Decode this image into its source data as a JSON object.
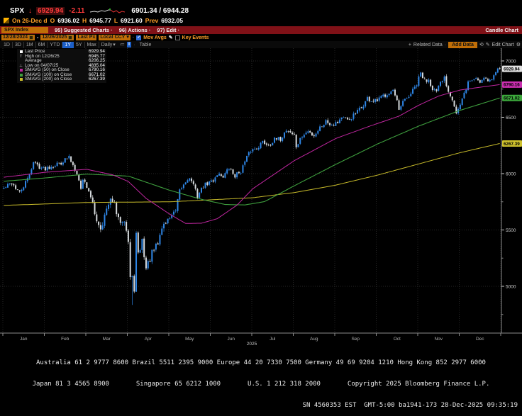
{
  "header": {
    "ticker": "SPX",
    "direction_arrow": "↓",
    "last_price": "6929.94",
    "change": "-2.11",
    "bid_ask": "6901.34 / 6944.28",
    "session": {
      "on_text": "On 26-Dec d",
      "o_label": "O",
      "open": "6936.02",
      "h_label": "H",
      "high": "6945.77",
      "l_label": "L",
      "low": "6921.60",
      "prev_label": "Prev",
      "prev": "6932.05"
    }
  },
  "red_bar": {
    "security": "SPX Index",
    "menu": [
      "95) Suggested Charts ·",
      "96) Actions ·",
      "97) Edit ·"
    ],
    "chart_type": "Candle Chart"
  },
  "toolbar": {
    "date_from": "12/28/2024",
    "date_range_sep": "-",
    "date_to": "12/26/2025",
    "price_field": "Last Px",
    "currency": "Local CCY",
    "mov_avgs_label": "Mov Avgs",
    "key_events_label": "Key Events"
  },
  "tab_row": {
    "periods": [
      "1D",
      "3D",
      "1M",
      "6M",
      "YTD",
      "1Y",
      "5Y",
      "Max"
    ],
    "active_period": "1Y",
    "frequency": "Daily",
    "table_label": "Table",
    "related_label": "Related Data",
    "add_data_label": "Add Data",
    "edit_chart_label": "Edit Chart"
  },
  "icons": {
    "dropdown": "▾",
    "refresh": "⟲",
    "edit_pencil": "✎",
    "gear": "⚙",
    "check": "✓",
    "plus": "+",
    "dot": "·",
    "list": "≔",
    "candle": "‖"
  },
  "legend": {
    "rows": [
      {
        "marker": "sq",
        "color": "#ffffff",
        "label": "Last Price",
        "value": "6929.94"
      },
      {
        "marker": "T",
        "color": "#c8c8c8",
        "label": "High on 12/26/25",
        "value": "6945.77"
      },
      {
        "marker": "",
        "color": "#c8c8c8",
        "label": "Average",
        "value": "6206.25"
      },
      {
        "marker": "⊥",
        "color": "#c8c8c8",
        "label": "Low on 04/07/25",
        "value": "4835.04"
      },
      {
        "marker": "sq",
        "color": "#c026a0",
        "label": "SMAVG (50)  on Close",
        "value": "6790.16"
      },
      {
        "marker": "sq",
        "color": "#3e9e3e",
        "label": "SMAVG (100) on Close",
        "value": "6671.02"
      },
      {
        "marker": "sq",
        "color": "#c8bb2a",
        "label": "SMAVG (200) on Close",
        "value": "6267.39"
      }
    ]
  },
  "axis": {
    "price_boxes": [
      {
        "label": "6929.94",
        "value": 6929.94,
        "color": "#e2e2e2"
      },
      {
        "label": "6790.16",
        "value": 6790.16,
        "color": "#cb2fb0"
      },
      {
        "label": "6671.02",
        "value": 6671.02,
        "color": "#3ca83c"
      },
      {
        "label": "6267.39",
        "value": 6267.39,
        "color": "#cfc22e"
      }
    ]
  },
  "x_axis": {
    "months": [
      "Jan",
      "Feb",
      "Mar",
      "Apr",
      "May",
      "Jun",
      "Jul",
      "Aug",
      "Sep",
      "Oct",
      "Nov",
      "Dec"
    ],
    "year": "2025"
  },
  "footer": {
    "line1": "Australia 61 2 9777 8600 Brazil 5511 2395 9000 Europe 44 20 7330 7500 Germany 49 69 9204 1210 Hong Kong 852 2977 6000",
    "line2": "Japan 81 3 4565 8900       Singapore 65 6212 1000       U.S. 1 212 318 2000       Copyright 2025 Bloomberg Finance L.P.",
    "line3": "SN 4560353 EST  GMT-5:00 ba1941-173 28-Dec-2025 09:35:19"
  },
  "chart_data": {
    "type": "candlestick",
    "symbol": "SPX Index",
    "title": "SPX Index - Candle Chart, Daily, 12/28/2024 - 12/26/2025",
    "last": 6929.94,
    "change": -2.11,
    "day_range": {
      "open": 6936.02,
      "high": 6945.77,
      "low": 6921.6,
      "prev_close": 6932.05
    },
    "high": {
      "date": "12/26/25",
      "value": 6945.77
    },
    "low": {
      "date": "04/07/25",
      "value": 4835.04
    },
    "average": 6206.25,
    "smavg": {
      "sma50": 6790.16,
      "sma100": 6671.02,
      "sma200": 6267.39
    },
    "ylim": [
      4585,
      7113
    ],
    "y_ticks": [
      5000,
      5500,
      6000,
      6500,
      7000
    ],
    "y_minor_step": 250,
    "days": 252,
    "month_boundaries": [
      0,
      21,
      42,
      63,
      84,
      105,
      126,
      147,
      168,
      189,
      210,
      231,
      252
    ],
    "close_anchors": [
      [
        0,
        5869
      ],
      [
        4,
        5918
      ],
      [
        8,
        5827
      ],
      [
        12,
        5950
      ],
      [
        15,
        6101
      ],
      [
        20,
        6041
      ],
      [
        24,
        6068
      ],
      [
        28,
        6090
      ],
      [
        33,
        6144
      ],
      [
        37,
        6013
      ],
      [
        39,
        5861
      ],
      [
        40,
        5955
      ],
      [
        43,
        5850
      ],
      [
        46,
        5640
      ],
      [
        49,
        5521
      ],
      [
        52,
        5675
      ],
      [
        55,
        5777
      ],
      [
        58,
        5581
      ],
      [
        61,
        5612
      ],
      [
        63,
        5396
      ],
      [
        64,
        5074
      ],
      [
        65,
        5062
      ],
      [
        66,
        4983
      ],
      [
        67,
        5457
      ],
      [
        68,
        5268
      ],
      [
        70,
        5406
      ],
      [
        72,
        5158
      ],
      [
        75,
        5288
      ],
      [
        78,
        5376
      ],
      [
        80,
        5525
      ],
      [
        82,
        5569
      ],
      [
        85,
        5635
      ],
      [
        87,
        5663
      ],
      [
        89,
        5844
      ],
      [
        93,
        5958
      ],
      [
        95,
        5941
      ],
      [
        98,
        5803
      ],
      [
        101,
        5889
      ],
      [
        103,
        5912
      ],
      [
        106,
        5940
      ],
      [
        108,
        6000
      ],
      [
        111,
        5977
      ],
      [
        114,
        6045
      ],
      [
        117,
        5981
      ],
      [
        120,
        6025
      ],
      [
        123,
        6141
      ],
      [
        125,
        6205
      ],
      [
        128,
        6230
      ],
      [
        131,
        6280
      ],
      [
        134,
        6259
      ],
      [
        137,
        6297
      ],
      [
        140,
        6306
      ],
      [
        143,
        6389
      ],
      [
        145,
        6370
      ],
      [
        147,
        6339
      ],
      [
        148,
        6238
      ],
      [
        151,
        6330
      ],
      [
        154,
        6373
      ],
      [
        157,
        6340
      ],
      [
        160,
        6411
      ],
      [
        163,
        6466
      ],
      [
        166,
        6440
      ],
      [
        169,
        6460
      ],
      [
        171,
        6502
      ],
      [
        174,
        6466
      ],
      [
        178,
        6532
      ],
      [
        181,
        6584
      ],
      [
        184,
        6664
      ],
      [
        187,
        6637
      ],
      [
        189,
        6644
      ],
      [
        192,
        6689
      ],
      [
        194,
        6716
      ],
      [
        197,
        6735
      ],
      [
        199,
        6629
      ],
      [
        200,
        6552
      ],
      [
        202,
        6630
      ],
      [
        204,
        6664
      ],
      [
        207,
        6735
      ],
      [
        209,
        6791
      ],
      [
        211,
        6891
      ],
      [
        213,
        6822
      ],
      [
        215,
        6840
      ],
      [
        217,
        6762
      ],
      [
        219,
        6720
      ],
      [
        221,
        6796
      ],
      [
        223,
        6851
      ],
      [
        225,
        6737
      ],
      [
        227,
        6672
      ],
      [
        229,
        6538
      ],
      [
        231,
        6602
      ],
      [
        233,
        6705
      ],
      [
        235,
        6813
      ],
      [
        237,
        6829
      ],
      [
        239,
        6850
      ],
      [
        241,
        6812
      ],
      [
        243,
        6861
      ],
      [
        245,
        6827
      ],
      [
        247,
        6835
      ],
      [
        249,
        6902
      ],
      [
        250,
        6932.05
      ],
      [
        251,
        6929.94
      ]
    ],
    "sma50_anchors": [
      [
        0,
        5968
      ],
      [
        21,
        6012
      ],
      [
        42,
        6038
      ],
      [
        55,
        5990
      ],
      [
        63,
        5930
      ],
      [
        72,
        5780
      ],
      [
        84,
        5640
      ],
      [
        92,
        5558
      ],
      [
        100,
        5560
      ],
      [
        108,
        5600
      ],
      [
        118,
        5720
      ],
      [
        126,
        5866
      ],
      [
        147,
        6115
      ],
      [
        168,
        6312
      ],
      [
        185,
        6420
      ],
      [
        200,
        6510
      ],
      [
        210,
        6607
      ],
      [
        220,
        6688
      ],
      [
        231,
        6742
      ],
      [
        240,
        6764
      ],
      [
        251,
        6790.16
      ]
    ],
    "sma100_anchors": [
      [
        0,
        5932
      ],
      [
        21,
        5962
      ],
      [
        42,
        5996
      ],
      [
        63,
        5978
      ],
      [
        84,
        5852
      ],
      [
        100,
        5772
      ],
      [
        112,
        5726
      ],
      [
        122,
        5722
      ],
      [
        132,
        5752
      ],
      [
        147,
        5892
      ],
      [
        168,
        6082
      ],
      [
        189,
        6262
      ],
      [
        210,
        6422
      ],
      [
        231,
        6562
      ],
      [
        251,
        6671.02
      ]
    ],
    "sma200_anchors": [
      [
        0,
        5718
      ],
      [
        42,
        5744
      ],
      [
        84,
        5750
      ],
      [
        126,
        5786
      ],
      [
        147,
        5832
      ],
      [
        168,
        5898
      ],
      [
        189,
        5986
      ],
      [
        210,
        6086
      ],
      [
        231,
        6186
      ],
      [
        251,
        6267.39
      ]
    ],
    "special": {
      "crash_low_day": 65,
      "crash_low": 4835.04,
      "last_day": {
        "open": 6936.02,
        "high": 6945.77,
        "low": 6921.6,
        "close": 6929.94
      },
      "prev_close": 6932.05
    },
    "noise": {
      "seed": 42,
      "base_vol": 0.0035,
      "crash_vol": 0.007,
      "calm_vol": 0.0022,
      "crash_range": [
        45,
        82
      ],
      "calm_from": 235
    },
    "colors": {
      "up": "#2e86e6",
      "down": "#d6dadd",
      "sma50": "#c026a0",
      "sma100": "#3e9e3e",
      "sma200": "#c8bb2a",
      "grid": "#262626",
      "axis": "#8c8c8c"
    }
  }
}
